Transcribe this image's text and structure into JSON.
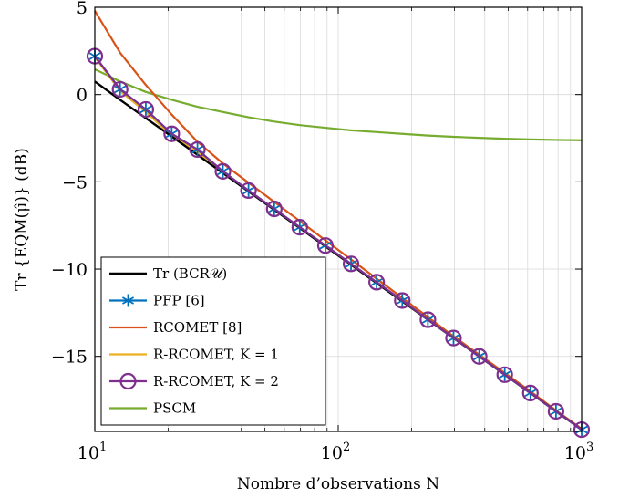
{
  "chart_data": {
    "type": "line",
    "xscale": "log",
    "xlabel": "Nombre d’observations N",
    "ylabel": "Tr {EQM(μ̂)} (dB)",
    "xlim": [
      10,
      1000
    ],
    "ylim": [
      -19.3,
      5
    ],
    "grid": true,
    "legend_position": "bottom-left",
    "x_ticks": [
      {
        "value": 10,
        "base": "10",
        "exp": "1"
      },
      {
        "value": 100,
        "base": "10",
        "exp": "2"
      },
      {
        "value": 1000,
        "base": "10",
        "exp": "3"
      }
    ],
    "y_ticks": [
      {
        "value": 5,
        "label": "5"
      },
      {
        "value": 0,
        "label": "0"
      },
      {
        "value": -5,
        "label": "−5"
      },
      {
        "value": -10,
        "label": "−10"
      },
      {
        "value": -15,
        "label": "−15"
      }
    ],
    "x": [
      10,
      12.7,
      16.2,
      20.7,
      26.4,
      33.6,
      42.8,
      54.6,
      69.5,
      88.6,
      112.9,
      143.8,
      183.3,
      233.6,
      297.6,
      379.3,
      483.3,
      615.8,
      784.8,
      1000
    ],
    "series": [
      {
        "name": "Tr (BCR𝒰)",
        "color": "#000000",
        "marker": "none",
        "values": [
          0.75,
          -0.3,
          -1.35,
          -2.4,
          -3.45,
          -4.5,
          -5.55,
          -6.6,
          -7.65,
          -8.7,
          -9.75,
          -10.8,
          -11.85,
          -12.9,
          -13.95,
          -15.0,
          -16.05,
          -17.1,
          -18.15,
          -19.2
        ]
      },
      {
        "name": "PFP [6]",
        "color": "#0072BD",
        "marker": "asterisk",
        "values": [
          2.2,
          0.3,
          -0.85,
          -2.25,
          -3.15,
          -4.4,
          -5.5,
          -6.55,
          -7.6,
          -8.65,
          -9.7,
          -10.75,
          -11.8,
          -12.9,
          -13.95,
          -15.0,
          -16.05,
          -17.1,
          -18.15,
          -19.2
        ]
      },
      {
        "name": "RCOMET [8]",
        "color": "#D95319",
        "marker": "none",
        "values": [
          4.8,
          2.4,
          0.55,
          -1.15,
          -2.7,
          -3.95,
          -5.05,
          -6.15,
          -7.25,
          -8.35,
          -9.45,
          -10.55,
          -11.65,
          -12.75,
          -13.85,
          -14.9,
          -15.95,
          -17.0,
          -18.1,
          -19.15
        ]
      },
      {
        "name": "R-RCOMET, K = 1",
        "color": "#EDB120",
        "marker": "none",
        "values": [
          2.15,
          0.2,
          -1.0,
          -2.35,
          -3.3,
          -4.45,
          -5.55,
          -6.6,
          -7.65,
          -8.7,
          -9.75,
          -10.8,
          -11.85,
          -12.9,
          -13.95,
          -15.0,
          -16.05,
          -17.1,
          -18.15,
          -19.2
        ]
      },
      {
        "name": "R-RCOMET, K = 2",
        "color": "#7E2F8E",
        "marker": "circle",
        "values": [
          2.2,
          0.3,
          -0.85,
          -2.25,
          -3.15,
          -4.4,
          -5.5,
          -6.55,
          -7.6,
          -8.65,
          -9.7,
          -10.75,
          -11.8,
          -12.9,
          -13.95,
          -15.0,
          -16.05,
          -17.1,
          -18.15,
          -19.2
        ]
      },
      {
        "name": "PSCM",
        "color": "#77AC30",
        "marker": "none",
        "values": [
          1.45,
          0.75,
          0.15,
          -0.3,
          -0.7,
          -1.0,
          -1.3,
          -1.55,
          -1.75,
          -1.9,
          -2.05,
          -2.15,
          -2.25,
          -2.35,
          -2.42,
          -2.48,
          -2.53,
          -2.57,
          -2.6,
          -2.62
        ]
      }
    ]
  }
}
